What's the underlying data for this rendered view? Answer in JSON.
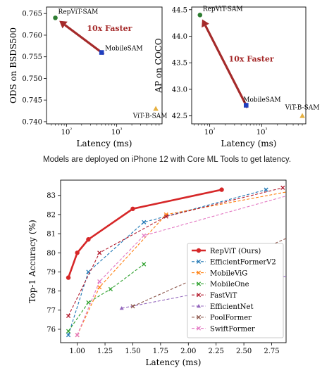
{
  "caption": "Models are deployed on iPhone 12 with Core ML Tools to get latency.",
  "colors": {
    "repvit": "#d62728",
    "efficientformerv2": "#1f77b4",
    "mobilevig": "#ff7f0e",
    "mobileone": "#2ca02c",
    "fastvit": "#b2182b",
    "efficientnet": "#9467bd",
    "poolformer": "#8c564b",
    "swiftformer": "#e377c2",
    "mobilesam": "#1f3fbf",
    "vitb": "#e6b040",
    "arrow": "#a52a2a"
  },
  "chart_data": [
    {
      "type": "scatter",
      "xlabel": "Latency (ms)",
      "ylabel": "ODS on BSDS500",
      "xscale": "log",
      "xticks": [
        "10²",
        "10³"
      ],
      "xtick_values": [
        100,
        1000
      ],
      "yticks": [
        "0.740",
        "0.745",
        "0.750",
        "0.755",
        "0.760",
        "0.765"
      ],
      "ylim": [
        0.7395,
        0.7665
      ],
      "xlim": [
        40,
        8000
      ],
      "points": [
        {
          "label": "RepViT-SAM",
          "x": 60,
          "y": 0.764
        },
        {
          "label": "MobileSAM",
          "x": 500,
          "y": 0.756
        },
        {
          "label": "ViT-B-SAM",
          "x": 6000,
          "y": 0.743
        }
      ],
      "annotation": "10x Faster"
    },
    {
      "type": "scatter",
      "xlabel": "Latency (ms)",
      "ylabel": "AP on COCO",
      "xscale": "log",
      "xticks": [
        "10²",
        "10³"
      ],
      "xtick_values": [
        100,
        1000
      ],
      "yticks": [
        "42.5",
        "43.0",
        "43.5",
        "44.0",
        "44.5"
      ],
      "ylim": [
        42.35,
        44.55
      ],
      "xlim": [
        45,
        7000
      ],
      "points": [
        {
          "label": "RepViT-SAM",
          "x": 65,
          "y": 44.4
        },
        {
          "label": "MobileSAM",
          "x": 500,
          "y": 42.7
        },
        {
          "label": "ViT-B-SAM",
          "x": 6000,
          "y": 42.5
        }
      ],
      "annotation": "10x Faster"
    },
    {
      "type": "line",
      "xlabel": "Latency (ms)",
      "ylabel": "Top-1 Accuracy (%)",
      "xlim": [
        0.85,
        2.88
      ],
      "ylim": [
        75.3,
        83.8
      ],
      "xticks": [
        "1.00",
        "1.25",
        "1.50",
        "1.75",
        "2.00",
        "2.25",
        "2.50",
        "2.75"
      ],
      "xtick_values": [
        1.0,
        1.25,
        1.5,
        1.75,
        2.0,
        2.25,
        2.5,
        2.75
      ],
      "yticks": [
        "76",
        "77",
        "78",
        "79",
        "80",
        "81",
        "82",
        "83"
      ],
      "ytick_values": [
        76,
        77,
        78,
        79,
        80,
        81,
        82,
        83
      ],
      "series": [
        {
          "name": "RepViT (Ours)",
          "key": "repvit",
          "marker": "o",
          "x": [
            0.92,
            1.0,
            1.1,
            1.5,
            2.3
          ],
          "y": [
            78.7,
            80.0,
            80.7,
            82.3,
            83.3
          ]
        },
        {
          "name": "EfficientFormerV2",
          "key": "efficientformerv2",
          "marker": "x",
          "x": [
            0.92,
            1.1,
            1.6,
            2.7
          ],
          "y": [
            75.7,
            79.0,
            81.6,
            83.3
          ]
        },
        {
          "name": "MobileViG",
          "key": "mobilevig",
          "marker": "x",
          "x": [
            1.0,
            1.2,
            1.8,
            2.9
          ],
          "y": [
            75.7,
            78.2,
            82.0,
            83.2
          ]
        },
        {
          "name": "MobileOne",
          "key": "mobileone",
          "marker": "x",
          "x": [
            0.92,
            1.1,
            1.3,
            1.6
          ],
          "y": [
            75.9,
            77.4,
            78.1,
            79.4
          ]
        },
        {
          "name": "FastViT",
          "key": "fastvit",
          "marker": "x",
          "x": [
            0.92,
            1.2,
            1.8,
            2.85
          ],
          "y": [
            76.7,
            80.0,
            81.9,
            83.4
          ]
        },
        {
          "name": "EfficientNet",
          "key": "efficientnet",
          "marker": "^",
          "x": [
            1.4,
            2.9
          ],
          "y": [
            77.1,
            78.8
          ]
        },
        {
          "name": "PoolFormer",
          "key": "poolformer",
          "marker": "x",
          "x": [
            1.5,
            2.9
          ],
          "y": [
            77.2,
            80.8
          ]
        },
        {
          "name": "SwiftFormer",
          "key": "swiftformer",
          "marker": "x",
          "x": [
            1.0,
            1.2,
            1.6,
            2.9
          ],
          "y": [
            75.7,
            78.5,
            80.9,
            83.0
          ]
        }
      ],
      "legend_position": "center-right"
    }
  ]
}
